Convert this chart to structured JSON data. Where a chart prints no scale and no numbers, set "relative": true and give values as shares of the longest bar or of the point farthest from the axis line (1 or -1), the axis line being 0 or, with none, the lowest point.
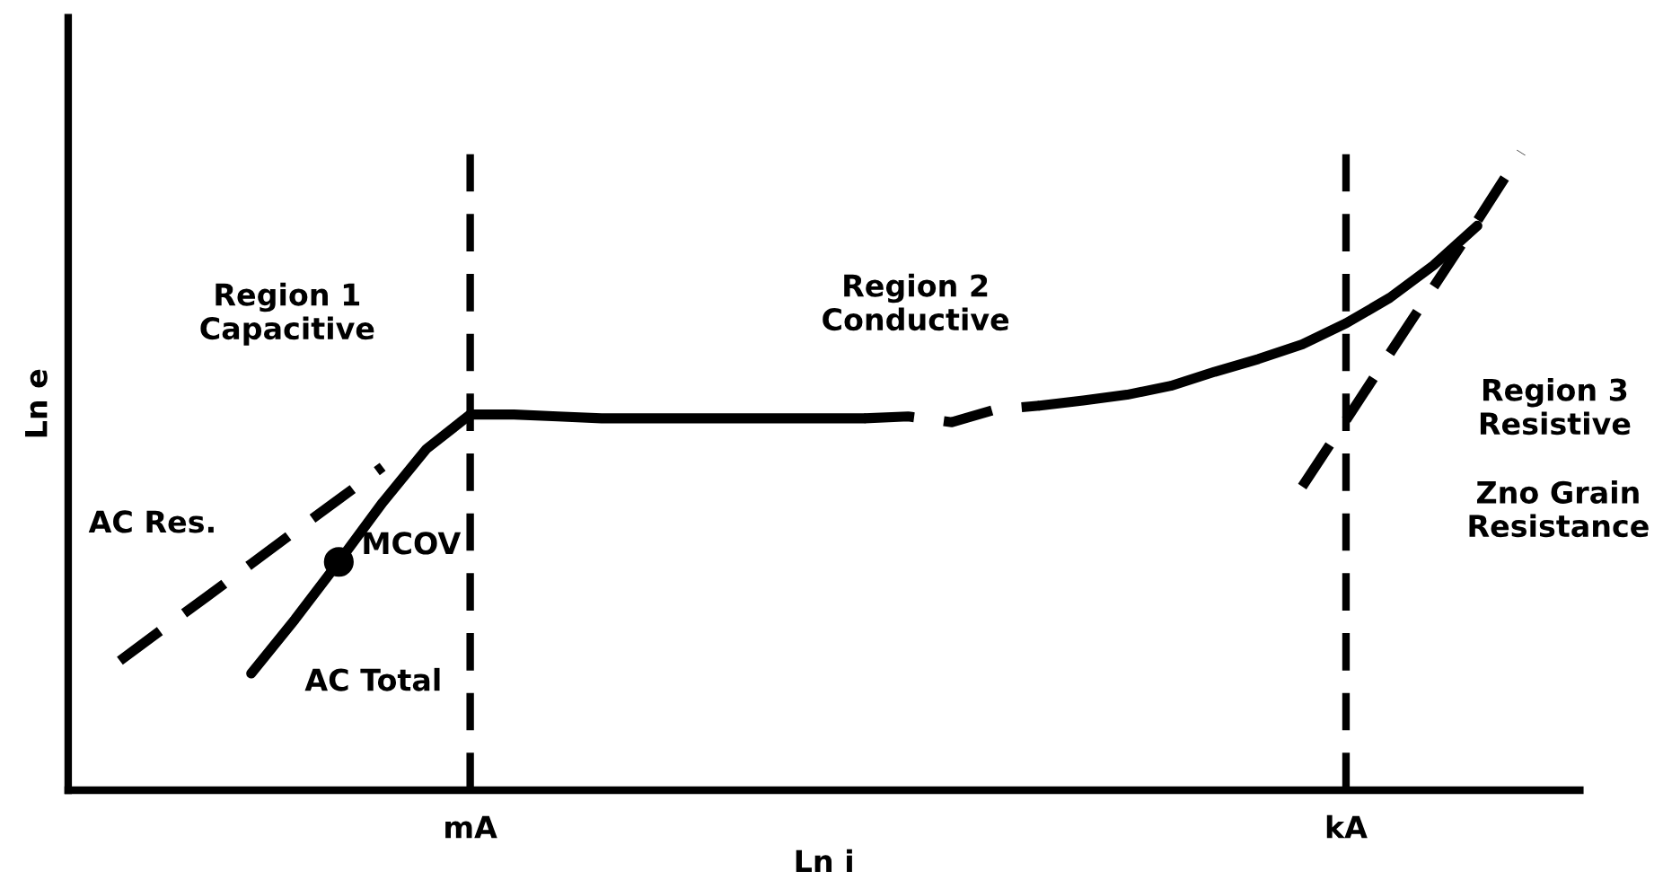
{
  "chart_data": {
    "type": "line",
    "relative": true,
    "xlabel": "Ln i",
    "ylabel": "Ln e",
    "grid": false,
    "legend": false,
    "categories": [
      null,
      null,
      null,
      null,
      null,
      null,
      null,
      null,
      null,
      "mA",
      null,
      null,
      null,
      null,
      null,
      null,
      null,
      null,
      null,
      null,
      null,
      null,
      null,
      null,
      null,
      null,
      null,
      null,
      null,
      "kA",
      null,
      null,
      null,
      null,
      null
    ],
    "series": [
      {
        "color": "#000000",
        "line_style": "solid",
        "values": [
          null,
          null,
          null,
          null,
          0.183,
          0.268,
          0.358,
          0.451,
          0.535,
          0.589,
          0.589,
          0.586,
          0.583,
          0.583,
          0.583,
          0.583,
          0.583,
          0.583,
          0.583,
          null,
          null,
          null,
          null,
          null,
          null,
          null,
          null,
          null,
          null,
          null,
          null,
          null,
          null,
          null,
          null
        ]
      },
      {
        "color": "#000000",
        "line_style": "dashed",
        "values": [
          null,
          null,
          null,
          null,
          null,
          null,
          null,
          null,
          null,
          null,
          null,
          null,
          null,
          null,
          null,
          null,
          null,
          null,
          0.583,
          0.586,
          0.577,
          0.597,
          0.603,
          null,
          null,
          null,
          null,
          null,
          null,
          null,
          null,
          null,
          null,
          null,
          null
        ]
      },
      {
        "color": "#000000",
        "line_style": "solid",
        "values": [
          null,
          null,
          null,
          null,
          null,
          null,
          null,
          null,
          null,
          null,
          null,
          null,
          null,
          null,
          null,
          null,
          null,
          null,
          null,
          null,
          null,
          null,
          0.603,
          0.611,
          0.62,
          0.634,
          0.656,
          0.676,
          0.699,
          0.732,
          0.772,
          0.823,
          0.885,
          null,
          null
        ]
      },
      {
        "color": "#000000",
        "line_style": "dashed",
        "values": [
          null,
          null,
          null,
          null,
          null,
          null,
          null,
          null,
          null,
          null,
          null,
          null,
          null,
          null,
          null,
          null,
          null,
          null,
          null,
          null,
          null,
          null,
          null,
          null,
          null,
          null,
          null,
          null,
          0.476,
          0.58,
          0.685,
          0.789,
          0.893,
          1.0,
          null
        ]
      },
      {
        "color": "#000000",
        "line_style": "dashed",
        "values": [
          null,
          0.203,
          0.254,
          0.304,
          0.355,
          0.406,
          0.456,
          0.507,
          null,
          null,
          null,
          null,
          null,
          null,
          null,
          null,
          null,
          null,
          null,
          null,
          null,
          null,
          null,
          null,
          null,
          null,
          null,
          null,
          null,
          null,
          null,
          null,
          null,
          null,
          null
        ]
      },
      {
        "type": "scatter",
        "color": "#000000",
        "marker": "circle",
        "values": [
          null,
          null,
          null,
          null,
          null,
          null,
          0.358,
          null,
          null,
          null,
          null,
          null,
          null,
          null,
          null,
          null,
          null,
          null,
          null,
          null,
          null,
          null,
          null,
          null,
          null,
          null,
          null,
          null,
          null,
          null,
          null,
          null,
          null,
          null,
          null
        ]
      }
    ],
    "ref_lines": [
      {
        "axis": "x",
        "value": "mA",
        "color": "#000000",
        "line_style": "dashed"
      },
      {
        "axis": "x",
        "value": "kA",
        "color": "#000000",
        "line_style": "dashed"
      }
    ],
    "annotations": [
      "Region 1\nCapacitive",
      "Region 2\nConductive",
      "Region 3\nResistive",
      "Zno Grain\nResistance",
      "AC Res.",
      "MCOV",
      "AC Total"
    ]
  }
}
